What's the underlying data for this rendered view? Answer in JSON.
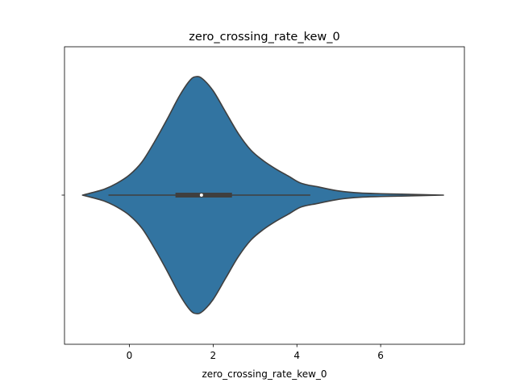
{
  "chart_data": {
    "type": "violin",
    "title": "zero_crossing_rate_kew_0",
    "xlabel": "zero_crossing_rate_kew_0",
    "ylabel": "",
    "xlim": [
      -1.55,
      8.0
    ],
    "xticks": [
      0,
      2,
      4,
      6
    ],
    "colors": {
      "violin": "#3274a1",
      "edge": "#3f3f3f",
      "box": "#3f3f3f",
      "median": "#ffffff"
    },
    "box": {
      "q1": 1.1,
      "median": 1.72,
      "q3": 2.45,
      "whisker_low": -0.5,
      "whisker_high": 4.32
    },
    "density": [
      {
        "x": -1.12,
        "d": 0.0
      },
      {
        "x": -0.9,
        "d": 0.02
      },
      {
        "x": -0.6,
        "d": 0.05
      },
      {
        "x": -0.3,
        "d": 0.1
      },
      {
        "x": 0.0,
        "d": 0.17
      },
      {
        "x": 0.3,
        "d": 0.28
      },
      {
        "x": 0.6,
        "d": 0.45
      },
      {
        "x": 0.9,
        "d": 0.64
      },
      {
        "x": 1.2,
        "d": 0.84
      },
      {
        "x": 1.45,
        "d": 0.97
      },
      {
        "x": 1.6,
        "d": 1.0
      },
      {
        "x": 1.75,
        "d": 0.98
      },
      {
        "x": 2.0,
        "d": 0.88
      },
      {
        "x": 2.3,
        "d": 0.7
      },
      {
        "x": 2.6,
        "d": 0.52
      },
      {
        "x": 2.9,
        "d": 0.38
      },
      {
        "x": 3.2,
        "d": 0.29
      },
      {
        "x": 3.5,
        "d": 0.22
      },
      {
        "x": 3.8,
        "d": 0.16
      },
      {
        "x": 4.1,
        "d": 0.1
      },
      {
        "x": 4.5,
        "d": 0.07
      },
      {
        "x": 5.0,
        "d": 0.035
      },
      {
        "x": 5.5,
        "d": 0.018
      },
      {
        "x": 6.0,
        "d": 0.012
      },
      {
        "x": 6.5,
        "d": 0.008
      },
      {
        "x": 7.0,
        "d": 0.004
      },
      {
        "x": 7.5,
        "d": 0.0
      }
    ]
  }
}
